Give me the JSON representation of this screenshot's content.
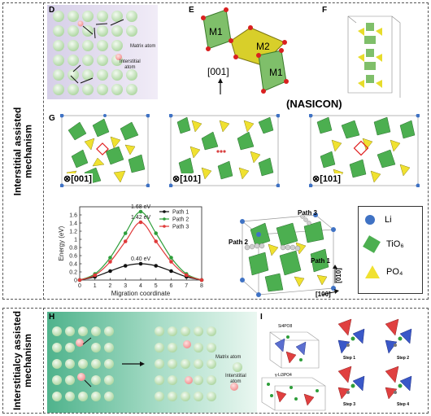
{
  "sections": [
    {
      "label": "Interstitial assisted\nmechanism"
    },
    {
      "label": "Interstitialcy assisted\nmechanism"
    }
  ],
  "panels": {
    "D": {
      "letter": "D",
      "matrix_label": "Matrix atom",
      "interstitial_label": "Interstitial\natom"
    },
    "E": {
      "letter": "E",
      "sites": [
        "M1",
        "M2",
        "M1"
      ],
      "direction": "[001]",
      "caption": "(NASICON)"
    },
    "F": {
      "letter": "F"
    },
    "G": {
      "letter": "G",
      "views": [
        "⊗[001]",
        "⊗[101]",
        "⊗[101]"
      ]
    },
    "H": {
      "letter": "H",
      "matrix_label": "Matrix atom",
      "interstitial_label": "Interstitial\natom"
    },
    "I": {
      "letter": "I",
      "subtitles": [
        "Si4PO8",
        "γ-Li3PO4"
      ],
      "steps": [
        "Step 1",
        "Step 2",
        "Step 3",
        "Step 4"
      ]
    }
  },
  "legend": [
    {
      "label": "Li",
      "color": "#3f72c4"
    },
    {
      "label": "TiO₆",
      "color": "#4caf50"
    },
    {
      "label": "PO₄",
      "color": "#f0e130"
    }
  ],
  "structure_labels": {
    "paths": [
      "Path 3",
      "Path 2",
      "Path 1"
    ],
    "axes": [
      "[010]",
      "[100]"
    ]
  },
  "chart_data": {
    "type": "line",
    "xlabel": "Migration coordinate",
    "ylabel": "Energy (eV)",
    "xlim": [
      0,
      8
    ],
    "ylim": [
      0,
      1.8
    ],
    "xticks": [
      0,
      1,
      2,
      3,
      4,
      5,
      6,
      7,
      8
    ],
    "yticks": [
      0,
      0.2,
      0.4,
      0.6,
      0.8,
      1.0,
      1.2,
      1.4,
      1.6
    ],
    "series": [
      {
        "name": "Path 1",
        "color": "#111111",
        "x": [
          0,
          1,
          2,
          3,
          4,
          5,
          6,
          7,
          8
        ],
        "y": [
          0.0,
          0.08,
          0.22,
          0.35,
          0.4,
          0.35,
          0.22,
          0.08,
          0.0
        ]
      },
      {
        "name": "Path 2",
        "color": "#2e9e3a",
        "x": [
          0,
          1,
          2,
          3,
          4,
          5,
          6,
          7,
          8
        ],
        "y": [
          0.0,
          0.15,
          0.55,
          1.15,
          1.68,
          1.15,
          0.55,
          0.15,
          0.0
        ]
      },
      {
        "name": "Path 3",
        "color": "#e03a3a",
        "x": [
          0,
          1,
          2,
          3,
          4,
          5,
          6,
          7,
          8
        ],
        "y": [
          0.0,
          0.12,
          0.45,
          0.95,
          1.42,
          0.95,
          0.45,
          0.12,
          0.0
        ]
      }
    ],
    "annotations": [
      "1.68 eV",
      "1.42 eV",
      "0.40 eV"
    ],
    "legend_position": "top-right"
  }
}
